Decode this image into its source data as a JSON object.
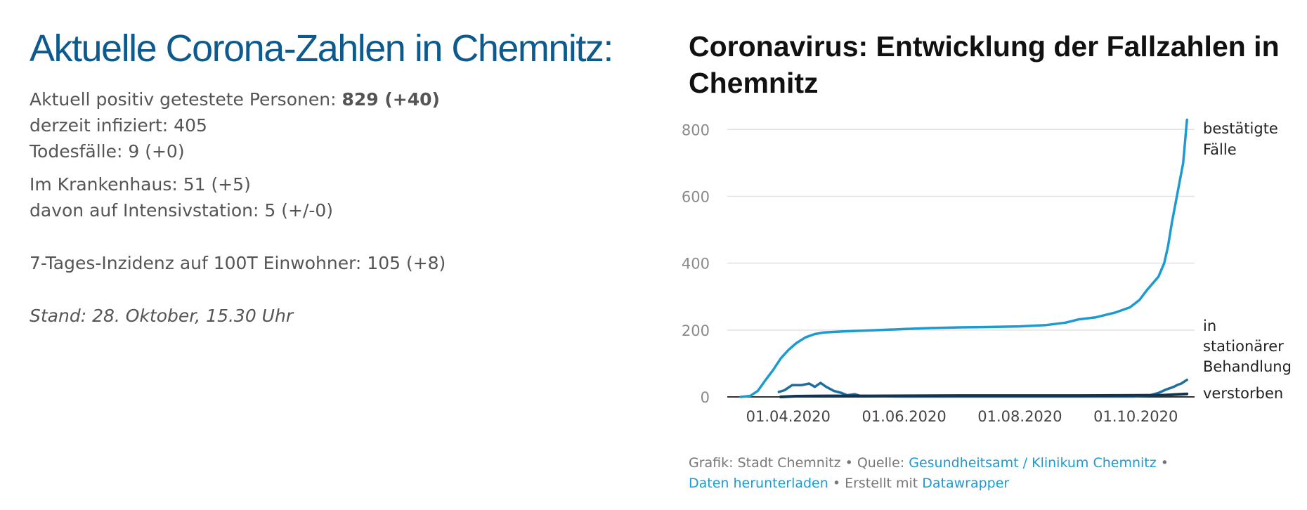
{
  "left_panel": {
    "heading": "Aktuelle Corona-Zahlen in Chemnitz:",
    "positive_label": "Aktuell positiv getestete Personen:",
    "positive_value": "829 (+40)",
    "infected": "derzeit infiziert: 405",
    "deaths": "Todesfälle: 9 (+0)",
    "hospital": "Im Krankenhaus: 51 (+5)",
    "icu": "davon auf Intensivstation: 5 (+/-0)",
    "incidence": "7-Tages-Inzidenz auf 100T Einwohner: 105 (+8)",
    "stand": "Stand: 28. Oktober, 15.30 Uhr"
  },
  "footer": {
    "grafik": "Grafik: Stadt Chemnitz",
    "sep1": " • ",
    "quelle_label": "Quelle: ",
    "quelle_link": "Gesundheitsamt / Klinikum Chemnitz",
    "sep2": " •",
    "download_link": "Daten herunterladen",
    "erstellt_label": " • Erstellt mit ",
    "datawrapper_link": "Datawrapper"
  },
  "chart_data": {
    "type": "line",
    "title": "Coronavirus: Entwicklung der Fallzahlen in Chemnitz",
    "xlabel": "",
    "ylabel": "",
    "ylim": [
      0,
      830
    ],
    "yticks": [
      0,
      200,
      400,
      600,
      800
    ],
    "xticks": [
      "2020-04-01",
      "2020-06-01",
      "2020-08-01",
      "2020-10-01"
    ],
    "xtick_labels": [
      "01.04.2020",
      "01.06.2020",
      "01.08.2020",
      "01.10.2020"
    ],
    "xlim": [
      "2020-03-01",
      "2020-11-01"
    ],
    "grid": true,
    "series": [
      {
        "name_lines": [
          "bestätigte",
          "Fälle"
        ],
        "color": "#1d9bd1",
        "points": [
          [
            "2020-03-07",
            0
          ],
          [
            "2020-03-12",
            3
          ],
          [
            "2020-03-16",
            18
          ],
          [
            "2020-03-20",
            50
          ],
          [
            "2020-03-24",
            80
          ],
          [
            "2020-03-28",
            115
          ],
          [
            "2020-04-01",
            140
          ],
          [
            "2020-04-05",
            160
          ],
          [
            "2020-04-10",
            178
          ],
          [
            "2020-04-15",
            188
          ],
          [
            "2020-04-20",
            193
          ],
          [
            "2020-04-30",
            196
          ],
          [
            "2020-05-15",
            199
          ],
          [
            "2020-06-01",
            203
          ],
          [
            "2020-06-15",
            206
          ],
          [
            "2020-07-01",
            208
          ],
          [
            "2020-07-15",
            209
          ],
          [
            "2020-08-01",
            211
          ],
          [
            "2020-08-15",
            215
          ],
          [
            "2020-08-25",
            222
          ],
          [
            "2020-09-01",
            232
          ],
          [
            "2020-09-10",
            238
          ],
          [
            "2020-09-20",
            252
          ],
          [
            "2020-09-28",
            268
          ],
          [
            "2020-10-03",
            290
          ],
          [
            "2020-10-07",
            320
          ],
          [
            "2020-10-10",
            340
          ],
          [
            "2020-10-13",
            360
          ],
          [
            "2020-10-16",
            400
          ],
          [
            "2020-10-18",
            450
          ],
          [
            "2020-10-20",
            520
          ],
          [
            "2020-10-22",
            580
          ],
          [
            "2020-10-24",
            640
          ],
          [
            "2020-10-26",
            700
          ],
          [
            "2020-10-28",
            829
          ]
        ]
      },
      {
        "name_lines": [
          "in",
          "stationärer",
          "Behandlung"
        ],
        "color": "#1e6f9f",
        "points": [
          [
            "2020-03-27",
            15
          ],
          [
            "2020-03-30",
            20
          ],
          [
            "2020-04-03",
            35
          ],
          [
            "2020-04-08",
            35
          ],
          [
            "2020-04-12",
            40
          ],
          [
            "2020-04-15",
            30
          ],
          [
            "2020-04-18",
            42
          ],
          [
            "2020-04-21",
            30
          ],
          [
            "2020-04-25",
            18
          ],
          [
            "2020-04-29",
            12
          ],
          [
            "2020-05-02",
            5
          ],
          [
            "2020-05-06",
            8
          ],
          [
            "2020-05-09",
            3
          ],
          [
            "2020-05-15",
            2
          ],
          [
            "2020-06-01",
            1
          ],
          [
            "2020-08-01",
            1
          ],
          [
            "2020-09-30",
            1
          ],
          [
            "2020-10-08",
            4
          ],
          [
            "2020-10-13",
            12
          ],
          [
            "2020-10-17",
            22
          ],
          [
            "2020-10-21",
            30
          ],
          [
            "2020-10-23",
            36
          ],
          [
            "2020-10-25",
            40
          ],
          [
            "2020-10-28",
            51
          ]
        ]
      },
      {
        "name_lines": [
          "verstorben"
        ],
        "color": "#13344f",
        "points": [
          [
            "2020-03-28",
            0
          ],
          [
            "2020-04-05",
            2
          ],
          [
            "2020-04-20",
            3
          ],
          [
            "2020-05-15",
            3
          ],
          [
            "2020-07-01",
            4
          ],
          [
            "2020-09-01",
            4
          ],
          [
            "2020-10-15",
            5
          ],
          [
            "2020-10-28",
            9
          ]
        ]
      }
    ],
    "footer_note": "Grafik: Stadt Chemnitz • Quelle: Gesundheitsamt / Klinikum Chemnitz • Daten herunterladen • Erstellt mit Datawrapper"
  }
}
